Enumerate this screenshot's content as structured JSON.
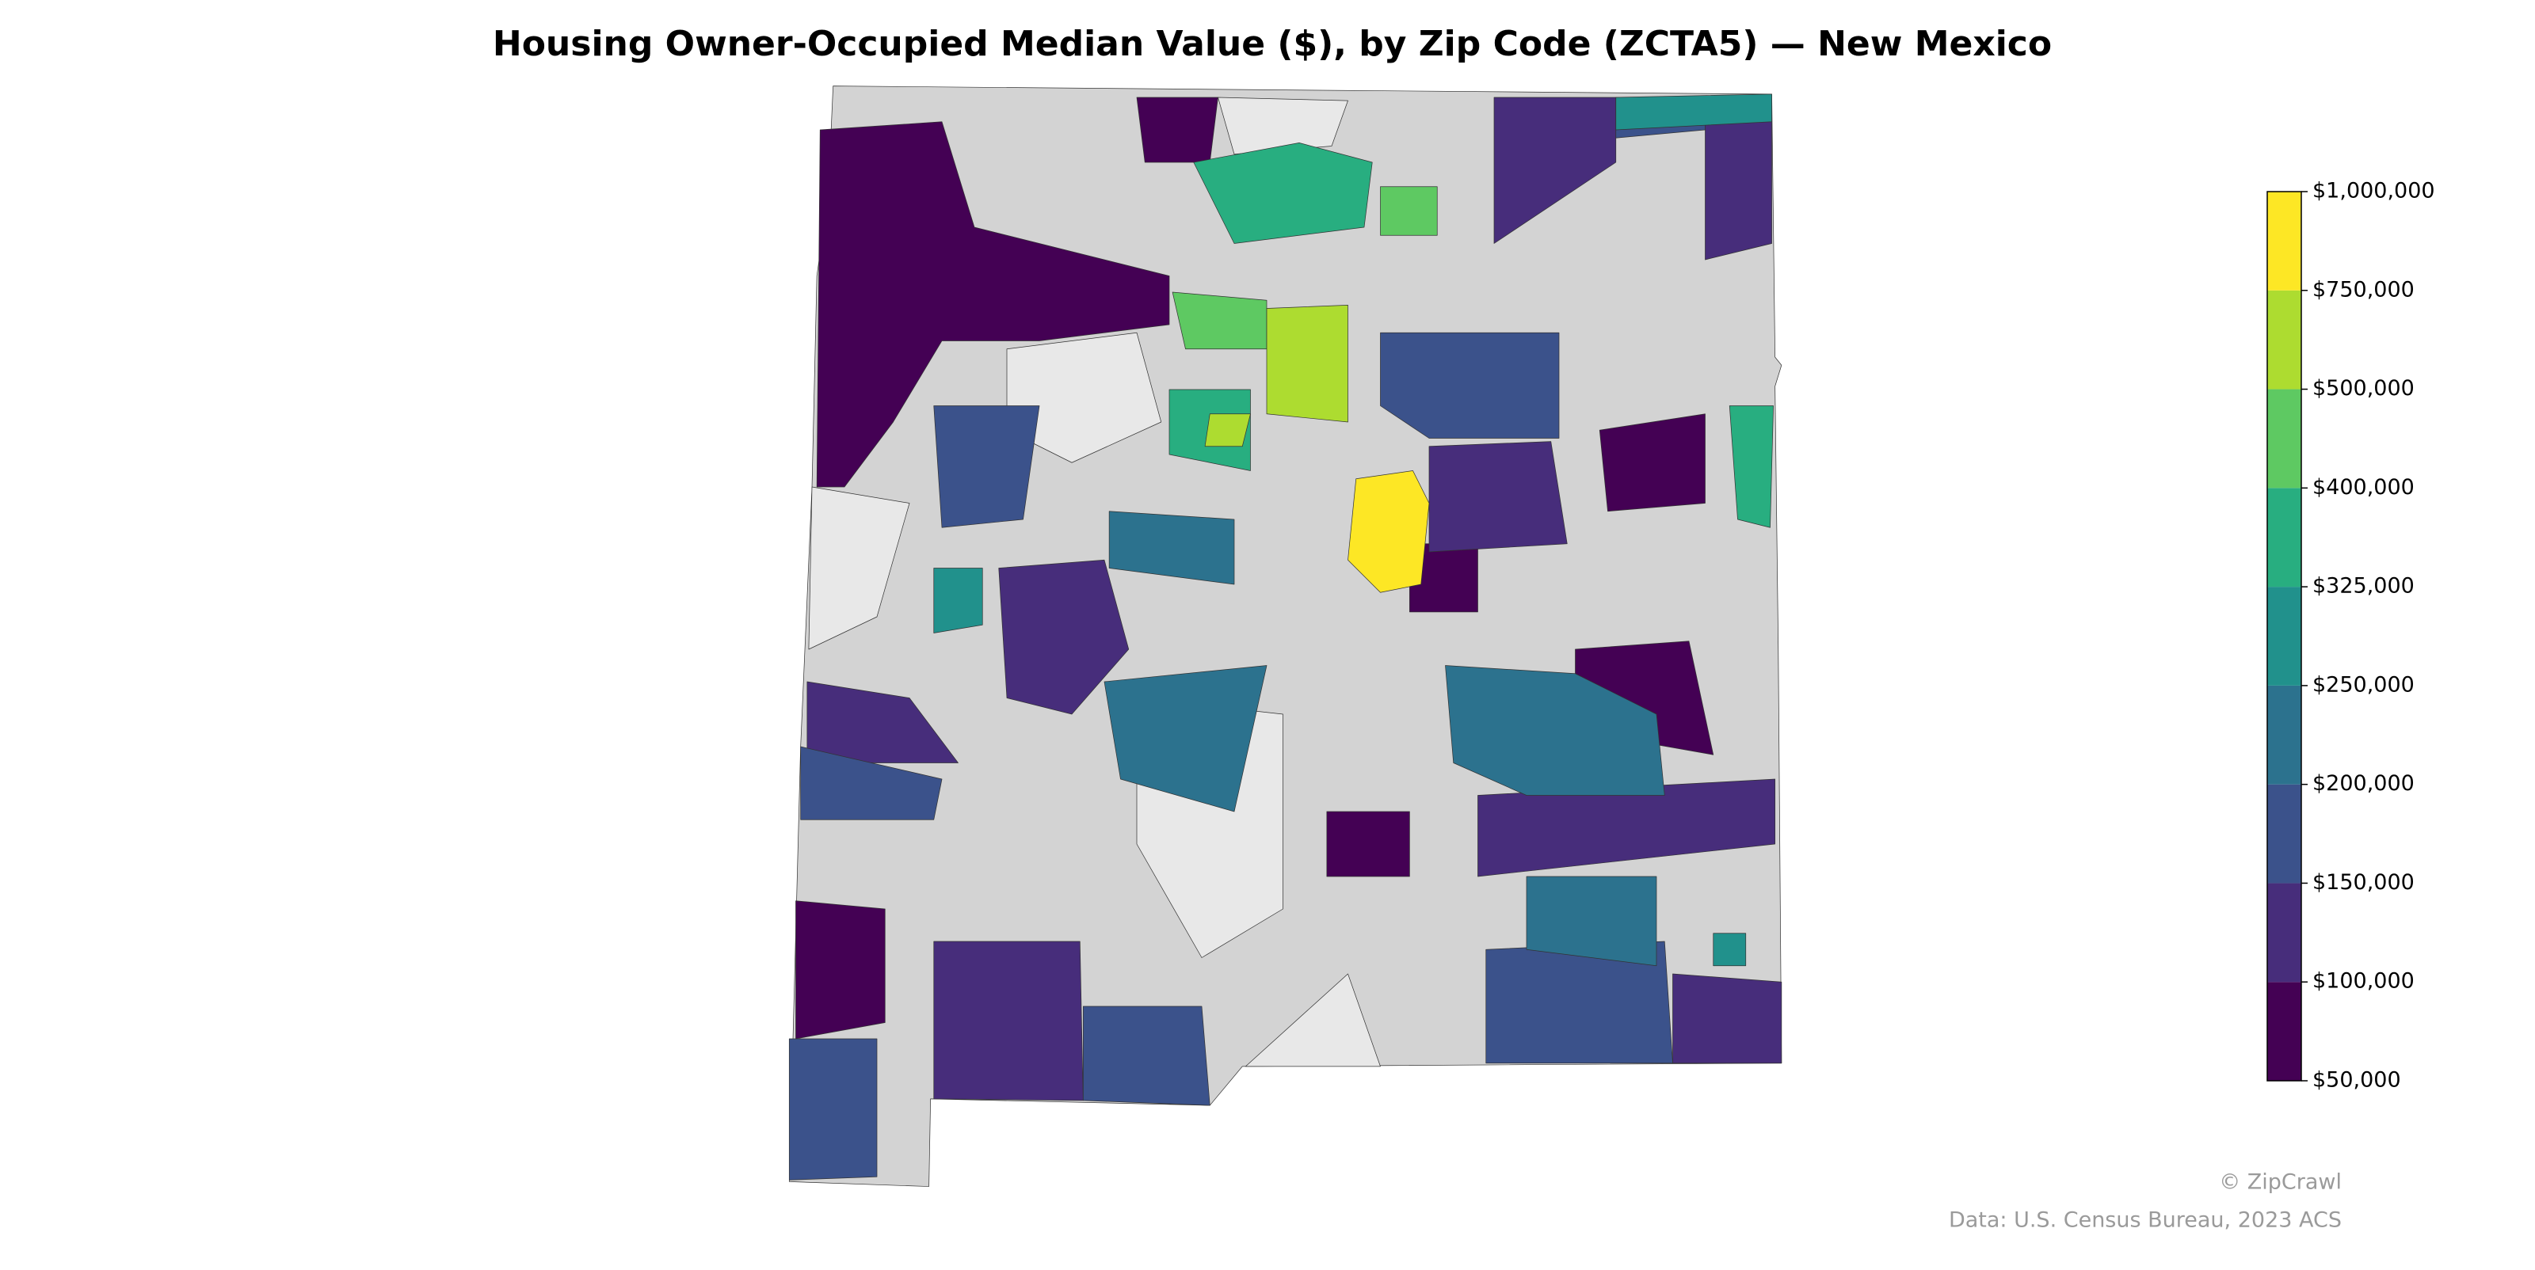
{
  "chart_data": {
    "type": "choropleth",
    "title": "Housing Owner-Occupied Median Value ($), by Zip Code (ZCTA5) — New Mexico",
    "colorbar": {
      "ticks": [
        {
          "value": 50000,
          "label": "$50,000"
        },
        {
          "value": 100000,
          "label": "$100,000"
        },
        {
          "value": 150000,
          "label": "$150,000"
        },
        {
          "value": 200000,
          "label": "$200,000"
        },
        {
          "value": 250000,
          "label": "$250,000"
        },
        {
          "value": 325000,
          "label": "$325,000"
        },
        {
          "value": 400000,
          "label": "$400,000"
        },
        {
          "value": 500000,
          "label": "$500,000"
        },
        {
          "value": 750000,
          "label": "$750,000"
        },
        {
          "value": 1000000,
          "label": "$1,000,000"
        }
      ],
      "colors": [
        "#440154",
        "#472d7b",
        "#3b528b",
        "#2c728e",
        "#21918c",
        "#28ae80",
        "#5ec962",
        "#addc30",
        "#fde725"
      ]
    },
    "missing_colors": [
      "#d3d3d3",
      "#e8e8e8"
    ],
    "credit": "© ZipCrawl",
    "source": "Data: U.S. Census Bureau, 2023 ACS"
  }
}
